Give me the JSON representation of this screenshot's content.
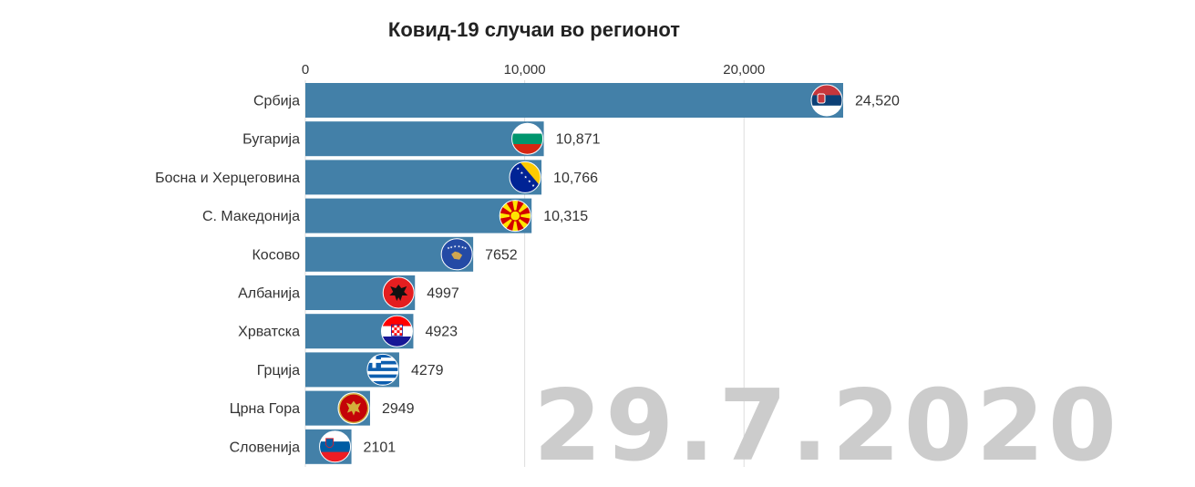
{
  "chart_data": {
    "type": "bar",
    "orientation": "horizontal",
    "title": "Ковид-19 случаи во регионот",
    "date_label": "29.7.2020",
    "xlim": [
      0,
      24520
    ],
    "ticks": [
      {
        "value": 0,
        "label": "0"
      },
      {
        "value": 10000,
        "label": "10,000"
      },
      {
        "value": 20000,
        "label": "20,000"
      }
    ],
    "grid": true,
    "bar_color": "#4380a8",
    "categories": [
      "Србија",
      "Бугарија",
      "Босна и Херцеговина",
      "С. Македонија",
      "Косово",
      "Албанија",
      "Хрватска",
      "Грција",
      "Црна Гора",
      "Словенија"
    ],
    "values": [
      24520,
      10871,
      10766,
      10315,
      7652,
      4997,
      4923,
      4279,
      2949,
      2101
    ],
    "value_labels": [
      "24,520",
      "10,871",
      "10,766",
      "10,315",
      "7652",
      "4997",
      "4923",
      "4279",
      "2949",
      "2101"
    ],
    "flag_icons": [
      "serbia-flag-icon",
      "bulgaria-flag-icon",
      "bosnia-flag-icon",
      "north-macedonia-flag-icon",
      "kosovo-flag-icon",
      "albania-flag-icon",
      "croatia-flag-icon",
      "greece-flag-icon",
      "montenegro-flag-icon",
      "slovenia-flag-icon"
    ]
  }
}
